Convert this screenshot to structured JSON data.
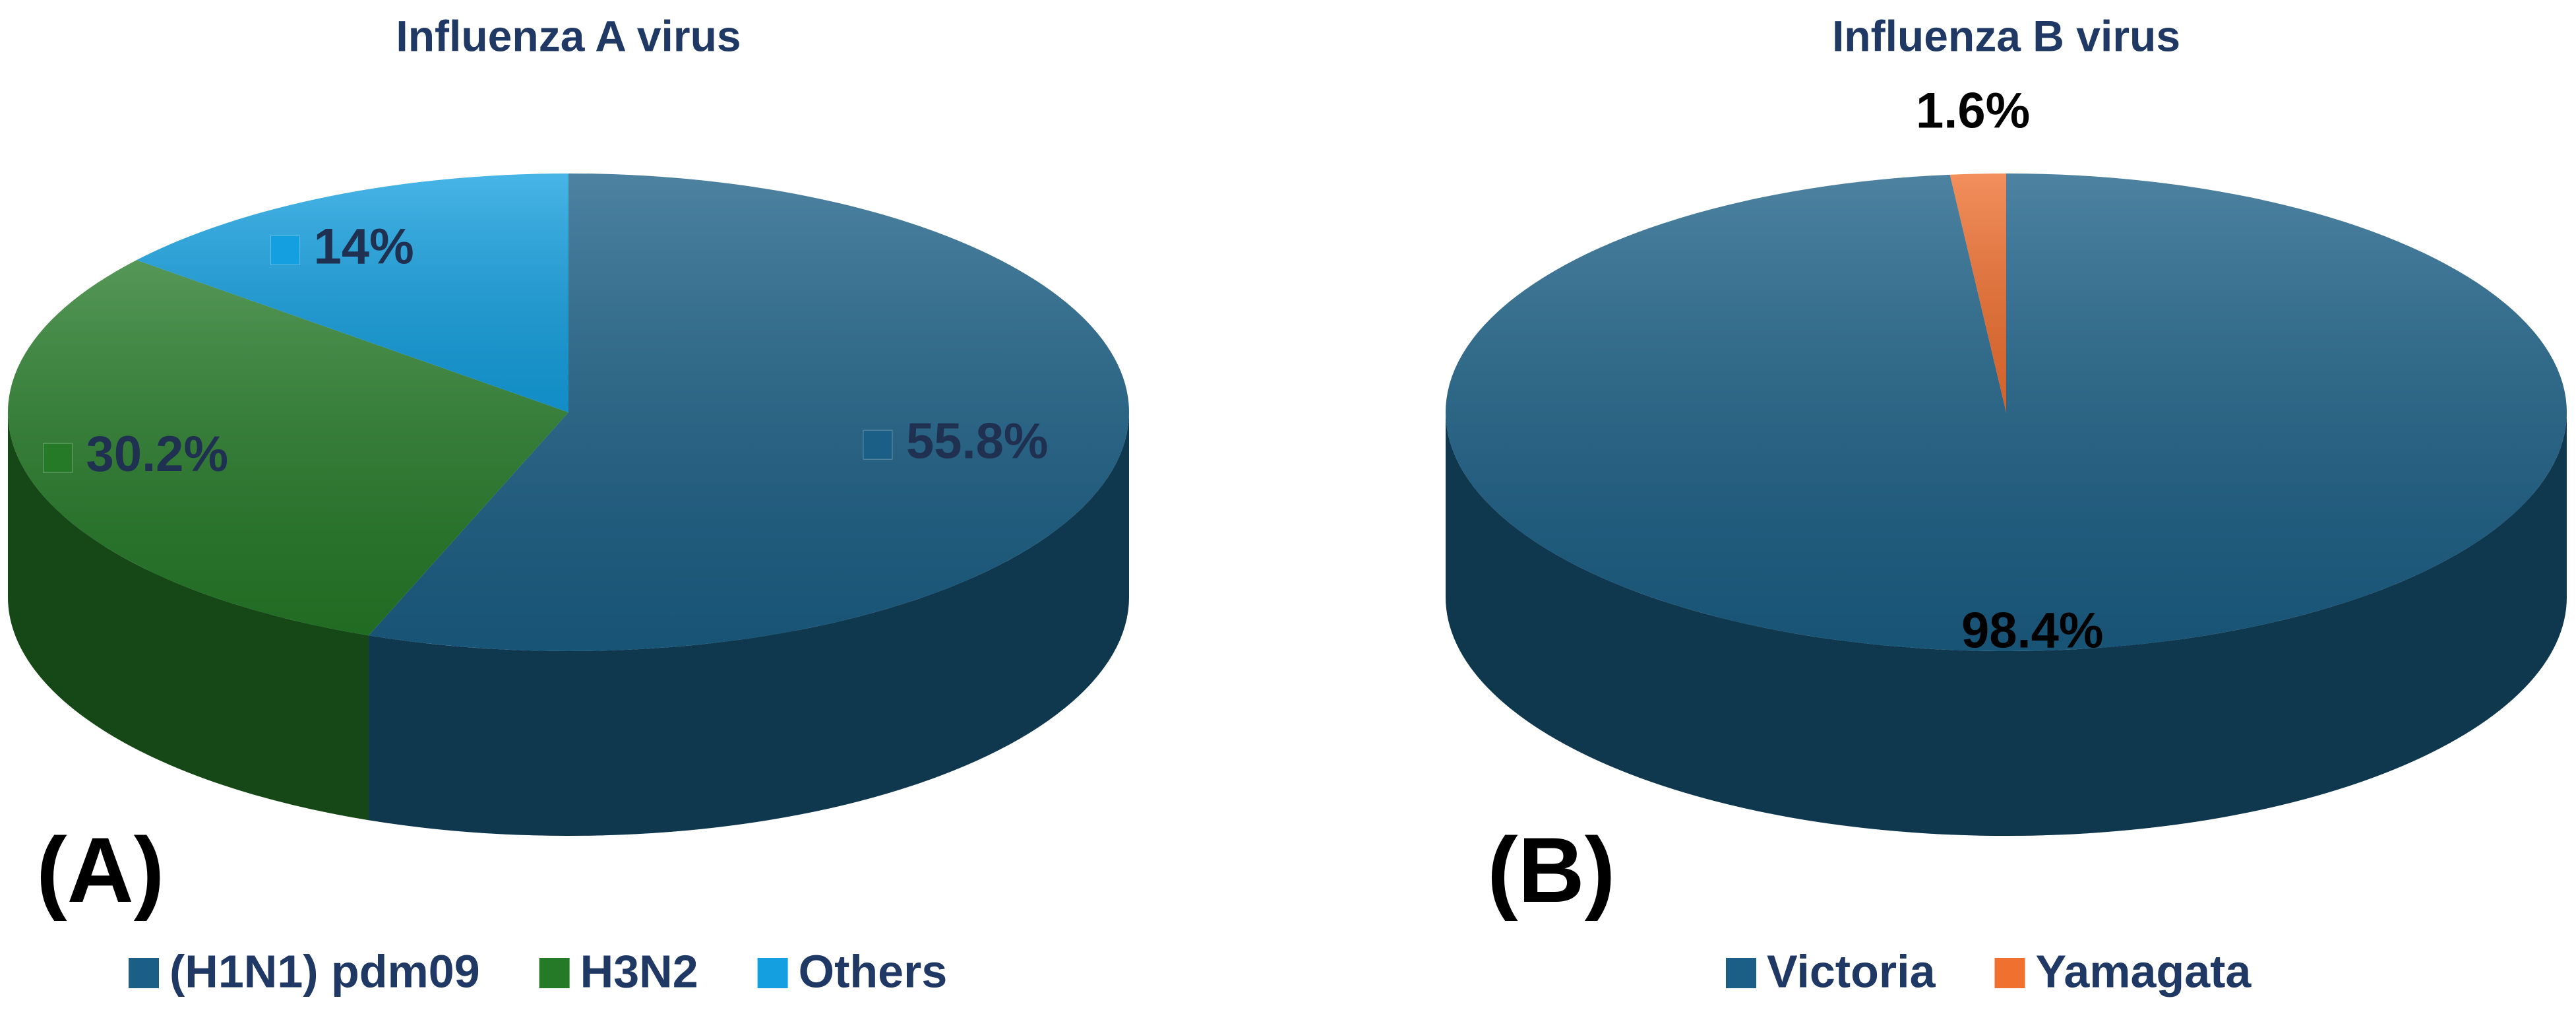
{
  "chart_data": [
    {
      "type": "pie",
      "title": "Influenza A virus",
      "panel_label": "(A)",
      "categories": [
        "(H1N1) pdm09",
        "H3N2",
        "Others"
      ],
      "values": [
        55.8,
        30.2,
        14
      ],
      "value_labels": [
        "55.8%",
        "30.2%",
        "14%"
      ],
      "colors": [
        "#1b5f86",
        "#257a28",
        "#14a0e0"
      ]
    },
    {
      "type": "pie",
      "title": "Influenza B virus",
      "panel_label": "(B)",
      "categories": [
        "Victoria",
        "Yamagata"
      ],
      "values": [
        98.4,
        1.6
      ],
      "value_labels": [
        "98.4%",
        "1.6%"
      ],
      "colors": [
        "#1b5f86",
        "#f07030"
      ]
    }
  ]
}
